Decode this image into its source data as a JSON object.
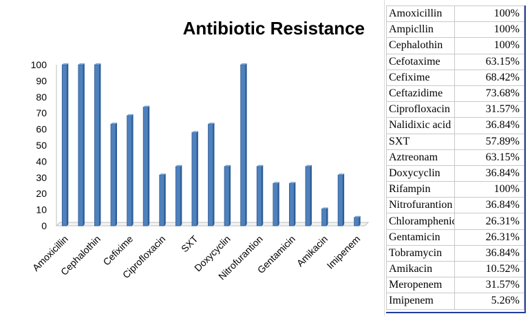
{
  "chart_data": {
    "type": "bar",
    "title": "Antibiotic Resistance",
    "categories": [
      "Amoxicillin",
      "Ampicllin",
      "Cephalothin",
      "Cefotaxime",
      "Cefixime",
      "Ceftazidime",
      "Ciprofloxacin",
      "Nalidixic acid",
      "SXT",
      "Aztreonam",
      "Doxycyclin",
      "Rifampin",
      "Nitrofurantion",
      "Chloramphenicol",
      "Gentamicin",
      "Tobramycin",
      "Amikacin",
      "Meropenem",
      "Imipenem"
    ],
    "tick_labels": [
      "Amoxicillin",
      "",
      "Cephalothin",
      "",
      "Cefixime",
      "",
      "Ciprofloxacin",
      "",
      "SXT",
      "",
      "Doxycyclin",
      "",
      "Nitrofurantion",
      "",
      "Gentamicin",
      "",
      "Amikacin",
      "",
      "Imipenem"
    ],
    "values": [
      100,
      100,
      100,
      63.15,
      68.42,
      73.68,
      31.57,
      36.84,
      57.89,
      63.15,
      36.84,
      100,
      36.84,
      26.31,
      26.31,
      36.84,
      10.52,
      31.57,
      5.26
    ],
    "ylim": [
      0,
      100
    ],
    "yticks": [
      "0",
      "10",
      "20",
      "30",
      "40",
      "50",
      "60",
      "70",
      "80",
      "90",
      "100"
    ],
    "bar_color": "#4f81bd",
    "bar_edge_color": "#2f5d95",
    "grid": false,
    "legend": "none"
  },
  "table": {
    "rows": [
      {
        "name": "Amoxicillin",
        "pct": "100%"
      },
      {
        "name": "Ampicllin",
        "pct": "100%"
      },
      {
        "name": "Cephalothin",
        "pct": "100%"
      },
      {
        "name": "Cefotaxime",
        "pct": "63.15%"
      },
      {
        "name": "Cefixime",
        "pct": "68.42%"
      },
      {
        "name": "Ceftazidime",
        "pct": "73.68%"
      },
      {
        "name": "Ciprofloxacin",
        "pct": "31.57%"
      },
      {
        "name": "Nalidixic acid",
        "pct": "36.84%"
      },
      {
        "name": "SXT",
        "pct": "57.89%"
      },
      {
        "name": "Aztreonam",
        "pct": "63.15%"
      },
      {
        "name": "Doxycyclin",
        "pct": "36.84%"
      },
      {
        "name": "Rifampin",
        "pct": "100%"
      },
      {
        "name": "Nitrofurantion",
        "pct": "36.84%"
      },
      {
        "name": "Chloramphenicol",
        "pct": "26.31%"
      },
      {
        "name": "Gentamicin",
        "pct": "26.31%"
      },
      {
        "name": "Tobramycin",
        "pct": "36.84%"
      },
      {
        "name": "Amikacin",
        "pct": "10.52%"
      },
      {
        "name": "Meropenem",
        "pct": "31.57%"
      },
      {
        "name": "Imipenem",
        "pct": "5.26%"
      }
    ]
  }
}
